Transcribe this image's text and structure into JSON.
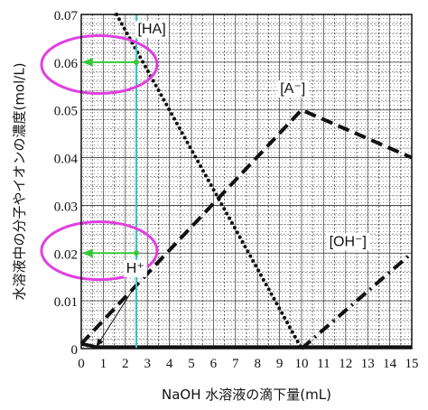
{
  "chart_data": {
    "type": "line",
    "xlabel": "NaOH 水溶液の滴下量(mL)",
    "ylabel": "水溶液中の分子やイオンの濃度(mol/L)",
    "xlim": [
      0,
      15
    ],
    "ylim": [
      0,
      0.07
    ],
    "x_ticks": [
      "0",
      "1",
      "2",
      "3",
      "4",
      "5",
      "6",
      "7",
      "8",
      "9",
      "10",
      "11",
      "12",
      "13",
      "14",
      "15"
    ],
    "y_ticks": [
      "0",
      "0.01",
      "0.02",
      "0.03",
      "0.04",
      "0.05",
      "0.06",
      "0.07"
    ],
    "grid": true,
    "series": [
      {
        "name": "HA",
        "style": "dotted",
        "color": "#111111",
        "x": [
          1.6,
          10
        ],
        "y": [
          0.07,
          0
        ]
      },
      {
        "name": "A⁻",
        "style": "dashed",
        "color": "#111111",
        "x": [
          0,
          10,
          15
        ],
        "y": [
          0.001,
          0.05,
          0.04
        ]
      },
      {
        "name": "OH⁻",
        "style": "dashdot",
        "color": "#111111",
        "x": [
          10,
          15
        ],
        "y": [
          0,
          0.02
        ]
      },
      {
        "name": "H⁺",
        "style": "solid",
        "color": "#111111",
        "x": [
          0,
          0.7,
          15
        ],
        "y": [
          0.001,
          0.0003,
          0.0003
        ]
      }
    ],
    "series_labels": [
      {
        "text": "[HA]",
        "x": 3.2,
        "y": 0.066
      },
      {
        "text": "[A⁻]",
        "x": 9.6,
        "y": 0.0535
      },
      {
        "text": "[OH⁻]",
        "x": 12.1,
        "y": 0.0215
      },
      {
        "text": "H⁺",
        "x": 2.45,
        "y": 0.0159
      }
    ],
    "annotations": {
      "vertical_line": {
        "x": 2.5,
        "color": "#2ec8cc"
      },
      "arrows": [
        {
          "from": [
            2.5,
            0.06
          ],
          "to": [
            0,
            0.06
          ],
          "color": "#37c837"
        },
        {
          "from": [
            2.5,
            0.02
          ],
          "to": [
            0,
            0.02
          ],
          "color": "#37c837"
        }
      ],
      "ellipses": [
        {
          "center": [
            0.9,
            0.0595
          ],
          "color": "#e040e0"
        },
        {
          "center": [
            0.9,
            0.0205
          ],
          "color": "#e040e0"
        }
      ],
      "pointer": {
        "from": [
          2.4,
          0.0128
        ],
        "to": [
          0.7,
          0.0005
        ]
      }
    }
  }
}
